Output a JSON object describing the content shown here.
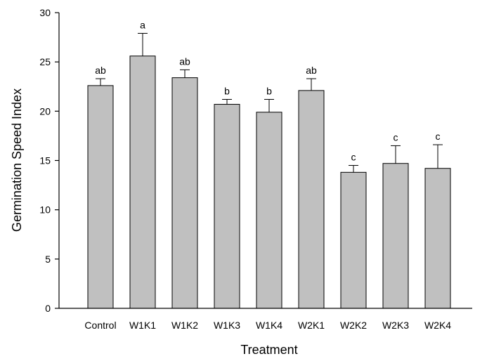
{
  "chart_data": {
    "type": "bar",
    "title": "",
    "xlabel": "Treatment",
    "ylabel": "Germination Speed Index",
    "ylim": [
      0,
      30
    ],
    "yticks": [
      0,
      5,
      10,
      15,
      20,
      25,
      30
    ],
    "grid": false,
    "categories": [
      "Control",
      "W1K1",
      "W1K2",
      "W1K3",
      "W1K4",
      "W2K1",
      "W2K2",
      "W2K3",
      "W2K4"
    ],
    "values": [
      22.6,
      25.6,
      23.4,
      20.7,
      19.9,
      22.1,
      13.8,
      14.7,
      14.2
    ],
    "errors": [
      0.7,
      2.3,
      0.8,
      0.5,
      1.3,
      1.2,
      0.7,
      1.8,
      2.4
    ],
    "significance": [
      "ab",
      "a",
      "ab",
      "b",
      "b",
      "ab",
      "c",
      "c",
      "c"
    ],
    "bar_color": "#c0c0c0"
  }
}
